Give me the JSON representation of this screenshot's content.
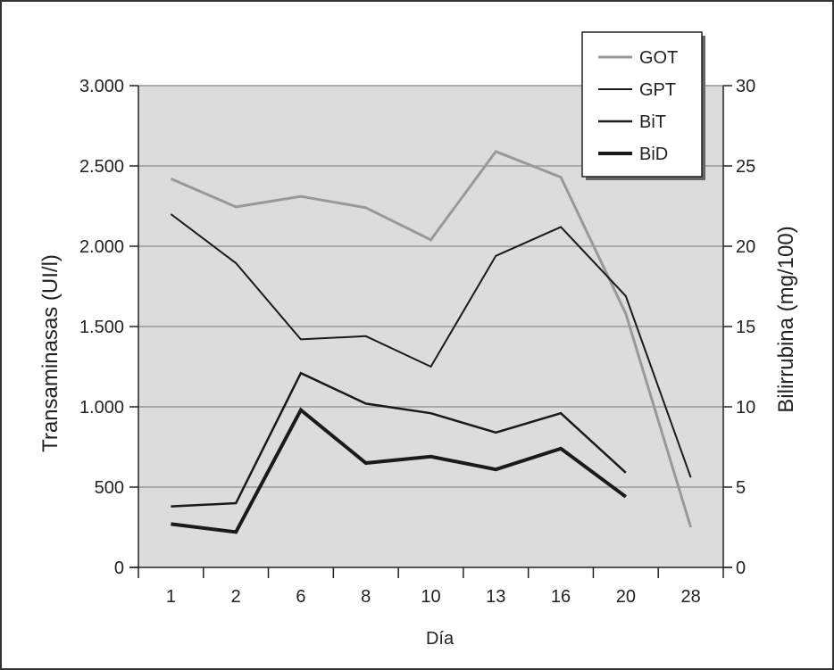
{
  "chart_data": {
    "type": "line",
    "title": "",
    "xlabel": "Día",
    "ylabel_left": "Transaminasas (UI/l)",
    "ylabel_right": "Bilirrubina (mg/100)",
    "categories": [
      "1",
      "2",
      "6",
      "8",
      "10",
      "13",
      "16",
      "20",
      "28"
    ],
    "ylim_left": [
      0,
      3000
    ],
    "ylim_right": [
      0,
      30
    ],
    "left_tick_labels": [
      "0",
      "500",
      "1.000",
      "1.500",
      "2.000",
      "2.500",
      "3.000"
    ],
    "left_tick_values": [
      0,
      500,
      1000,
      1500,
      2000,
      2500,
      3000
    ],
    "right_tick_labels": [
      "0",
      "5",
      "10",
      "15",
      "20",
      "25",
      "30"
    ],
    "right_tick_values": [
      0,
      5,
      10,
      15,
      20,
      25,
      30
    ],
    "grid": true,
    "legend_position": "top-right",
    "plot_background": "#dcdcdc",
    "series": [
      {
        "name": "GOT",
        "axis": "left",
        "color": "#999999",
        "width": 3,
        "values": [
          2420,
          2245,
          2310,
          2240,
          2040,
          2590,
          2430,
          1580,
          250
        ]
      },
      {
        "name": "GPT",
        "axis": "left",
        "color": "#1a1a1a",
        "width": 2,
        "values": [
          2200,
          1895,
          1420,
          1440,
          1250,
          1940,
          2120,
          1690,
          560
        ]
      },
      {
        "name": "BiT",
        "axis": "right",
        "color": "#1a1a1a",
        "width": 2.5,
        "values": [
          3.8,
          4.0,
          12.1,
          10.2,
          9.6,
          8.4,
          9.6,
          5.9,
          null
        ]
      },
      {
        "name": "BiD",
        "axis": "right",
        "color": "#1a1a1a",
        "width": 4,
        "values": [
          2.7,
          2.2,
          9.8,
          6.5,
          6.9,
          6.1,
          7.4,
          4.4,
          null
        ]
      }
    ]
  }
}
